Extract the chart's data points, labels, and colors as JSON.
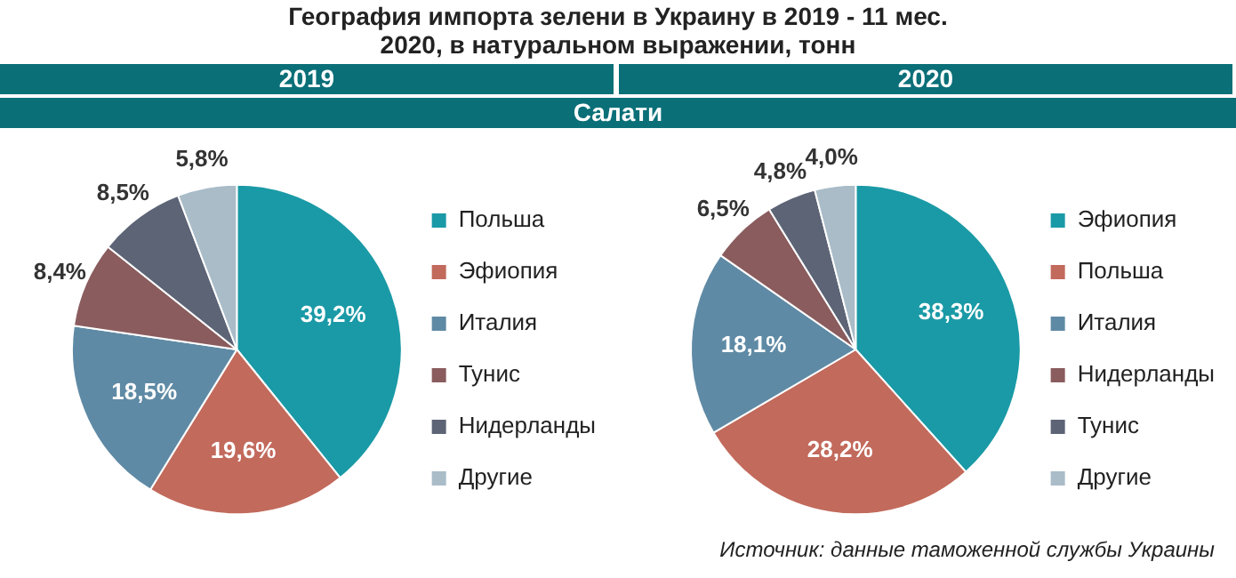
{
  "chart_data": [
    {
      "type": "other",
      "title": "География импорта зелени в Украину в 2019 - 11 мес. 2020, в натуральном выражении, тонн",
      "subtitle": "Салати",
      "annotations": [
        "Источник: данные таможенной службы Украины"
      ]
    },
    {
      "type": "pie",
      "title": "2019",
      "legend": "right",
      "categories": [
        "Польша",
        "Эфиопия",
        "Италия",
        "Тунис",
        "Нидерланды",
        "Другие"
      ],
      "values": [
        39.2,
        19.6,
        18.5,
        8.4,
        8.5,
        5.8
      ],
      "value_labels": [
        "39,2%",
        "19,6%",
        "18,5%",
        "8,4%",
        "8,5%",
        "5,8%"
      ],
      "colors": [
        "#1a9aa6",
        "#c26a5c",
        "#5f8aa5",
        "#8a5c5e",
        "#5c6476",
        "#a9bcc8"
      ]
    },
    {
      "type": "pie",
      "title": "2020",
      "legend": "right",
      "categories": [
        "Эфиопия",
        "Польша",
        "Италия",
        "Нидерланды",
        "Тунис",
        "Другие"
      ],
      "values": [
        38.3,
        28.2,
        18.1,
        6.5,
        4.8,
        4.0
      ],
      "value_labels": [
        "38,3%",
        "28,2%",
        "18,1%",
        "6,5%",
        "4,8%",
        "4,0%"
      ],
      "colors": [
        "#1a9aa6",
        "#c26a5c",
        "#5f8aa5",
        "#8a5c5e",
        "#5c6476",
        "#a9bcc8"
      ]
    }
  ]
}
